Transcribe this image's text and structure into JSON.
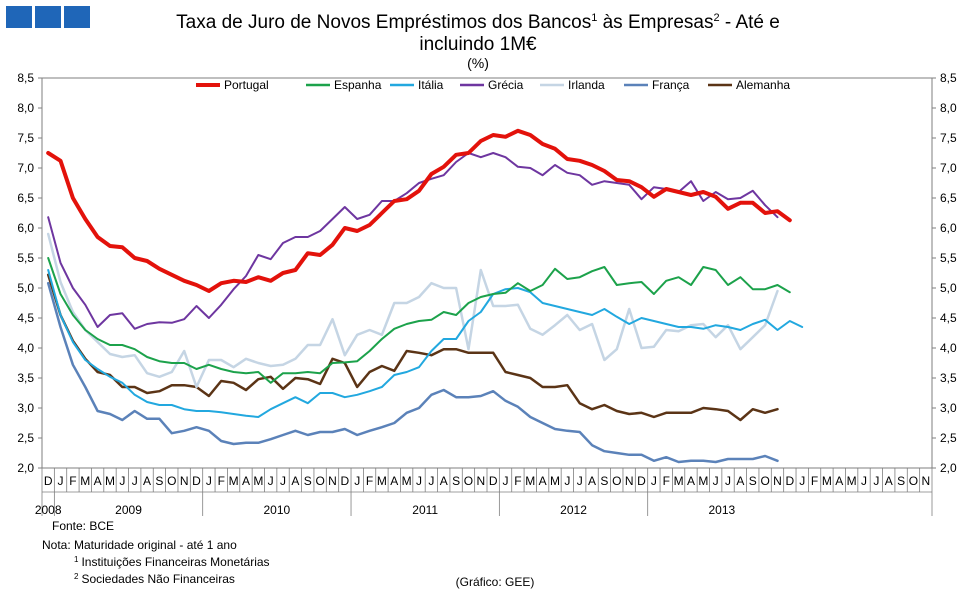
{
  "chart_data": {
    "type": "line",
    "title_main": "Taxa de Juro de Novos Empréstimos dos Bancos",
    "title_sup1": "1",
    "title_mid": " às Empresas",
    "title_sup2": "2",
    "title_end": " - Até e",
    "title_line2": "incluindo 1M€",
    "subtitle": "(%)",
    "ylim": [
      2.0,
      8.5
    ],
    "yticks": [
      "2,0",
      "2,5",
      "3,0",
      "3,5",
      "4,0",
      "4,5",
      "5,0",
      "5,5",
      "6,0",
      "6,5",
      "7,0",
      "7,5",
      "8,0",
      "8,5"
    ],
    "ytick_values": [
      2.0,
      2.5,
      3.0,
      3.5,
      4.0,
      4.5,
      5.0,
      5.5,
      6.0,
      6.5,
      7.0,
      7.5,
      8.0,
      8.5
    ],
    "month_labels": [
      "D",
      "J",
      "F",
      "M",
      "A",
      "M",
      "J",
      "J",
      "A",
      "S",
      "O",
      "N",
      "D",
      "J",
      "F",
      "M",
      "A",
      "M",
      "J",
      "J",
      "A",
      "S",
      "O",
      "N",
      "D",
      "J",
      "F",
      "M",
      "A",
      "M",
      "J",
      "J",
      "A",
      "S",
      "O",
      "N",
      "D",
      "J",
      "F",
      "M",
      "A",
      "M",
      "J",
      "J",
      "A",
      "S",
      "O",
      "N",
      "D",
      "J",
      "F",
      "M",
      "A",
      "M",
      "J",
      "J",
      "A",
      "S",
      "O",
      "N",
      "D",
      "J",
      "F",
      "M",
      "A",
      "M",
      "J",
      "J",
      "A",
      "S",
      "O",
      "N"
    ],
    "year_labels": [
      "2008",
      "2009",
      "2010",
      "2011",
      "2012",
      "2013"
    ],
    "series": [
      {
        "name": "Portugal",
        "color": "#e3120b",
        "width": 4,
        "values": [
          7.25,
          7.12,
          6.5,
          6.15,
          5.85,
          5.7,
          5.68,
          5.5,
          5.45,
          5.32,
          5.22,
          5.12,
          5.05,
          4.95,
          5.08,
          5.12,
          5.1,
          5.18,
          5.12,
          5.25,
          5.3,
          5.58,
          5.55,
          5.72,
          6.0,
          5.95,
          6.05,
          6.25,
          6.45,
          6.48,
          6.62,
          6.9,
          7.02,
          7.22,
          7.25,
          7.45,
          7.55,
          7.52,
          7.62,
          7.55,
          7.4,
          7.32,
          7.15,
          7.12,
          7.05,
          6.95,
          6.8,
          6.78,
          6.68,
          6.52,
          6.65,
          6.6,
          6.55,
          6.6,
          6.52,
          6.32,
          6.42,
          6.42,
          6.25,
          6.28,
          6.13
        ]
      },
      {
        "name": "Espanha",
        "color": "#1ca24b",
        "width": 2,
        "values": [
          5.5,
          4.9,
          4.55,
          4.3,
          4.15,
          4.05,
          4.05,
          3.98,
          3.85,
          3.78,
          3.75,
          3.75,
          3.65,
          3.72,
          3.65,
          3.6,
          3.58,
          3.6,
          3.42,
          3.58,
          3.58,
          3.6,
          3.58,
          3.75,
          3.76,
          3.78,
          3.95,
          4.15,
          4.32,
          4.4,
          4.45,
          4.47,
          4.6,
          4.55,
          4.75,
          4.85,
          4.9,
          4.92,
          5.08,
          4.95,
          5.05,
          5.32,
          5.15,
          5.18,
          5.28,
          5.35,
          5.05,
          5.08,
          5.1,
          4.9,
          5.12,
          5.18,
          5.05,
          5.35,
          5.3,
          5.05,
          5.18,
          4.98,
          4.98,
          5.05,
          4.93
        ]
      },
      {
        "name": "Itália",
        "color": "#22a8df",
        "width": 2,
        "values": [
          5.3,
          4.55,
          4.1,
          3.8,
          3.65,
          3.52,
          3.42,
          3.22,
          3.1,
          3.05,
          3.05,
          2.98,
          2.95,
          2.95,
          2.93,
          2.9,
          2.87,
          2.85,
          2.98,
          3.08,
          3.18,
          3.08,
          3.25,
          3.25,
          3.18,
          3.22,
          3.28,
          3.35,
          3.55,
          3.6,
          3.68,
          3.95,
          4.15,
          4.15,
          4.45,
          4.6,
          4.9,
          4.98,
          5.0,
          4.93,
          4.75,
          4.7,
          4.65,
          4.6,
          4.55,
          4.65,
          4.52,
          4.4,
          4.5,
          4.45,
          4.4,
          4.35,
          4.35,
          4.32,
          4.38,
          4.35,
          4.3,
          4.4,
          4.47,
          4.3,
          4.45,
          4.35
        ]
      },
      {
        "name": "Grécia",
        "color": "#6e36a0",
        "width": 2,
        "values": [
          6.18,
          5.42,
          5.0,
          4.72,
          4.35,
          4.55,
          4.58,
          4.32,
          4.4,
          4.43,
          4.42,
          4.48,
          4.7,
          4.5,
          4.72,
          4.98,
          5.2,
          5.55,
          5.48,
          5.75,
          5.85,
          5.85,
          5.95,
          6.15,
          6.35,
          6.15,
          6.22,
          6.45,
          6.45,
          6.58,
          6.75,
          6.82,
          6.88,
          7.1,
          7.25,
          7.18,
          7.25,
          7.18,
          7.02,
          7.0,
          6.88,
          7.05,
          6.92,
          6.88,
          6.72,
          6.78,
          6.75,
          6.72,
          6.48,
          6.68,
          6.65,
          6.6,
          6.78,
          6.45,
          6.6,
          6.48,
          6.5,
          6.62,
          6.38,
          6.18
        ]
      },
      {
        "name": "Irlanda",
        "color": "#c5d5e4",
        "width": 2.5,
        "values": [
          5.9,
          5.1,
          4.6,
          4.3,
          4.1,
          3.9,
          3.85,
          3.88,
          3.58,
          3.52,
          3.6,
          3.95,
          3.35,
          3.8,
          3.8,
          3.68,
          3.82,
          3.75,
          3.7,
          3.72,
          3.82,
          4.05,
          4.05,
          4.48,
          3.88,
          4.22,
          4.3,
          4.22,
          4.75,
          4.75,
          4.85,
          5.08,
          5.0,
          5.0,
          3.98,
          5.3,
          4.7,
          4.7,
          4.72,
          4.32,
          4.22,
          4.38,
          4.55,
          4.3,
          4.4,
          3.8,
          3.98,
          4.65,
          4.0,
          4.02,
          4.3,
          4.28,
          4.38,
          4.4,
          4.18,
          4.38,
          3.98,
          4.18,
          4.38,
          4.95
        ]
      },
      {
        "name": "França",
        "color": "#5b82b9",
        "width": 2.5,
        "values": [
          5.08,
          4.35,
          3.72,
          3.35,
          2.95,
          2.9,
          2.8,
          2.95,
          2.82,
          2.82,
          2.58,
          2.62,
          2.68,
          2.62,
          2.45,
          2.4,
          2.42,
          2.42,
          2.48,
          2.55,
          2.62,
          2.55,
          2.6,
          2.6,
          2.65,
          2.55,
          2.62,
          2.68,
          2.75,
          2.92,
          3.0,
          3.22,
          3.3,
          3.18,
          3.18,
          3.2,
          3.28,
          3.12,
          3.02,
          2.85,
          2.75,
          2.65,
          2.62,
          2.6,
          2.38,
          2.28,
          2.25,
          2.22,
          2.22,
          2.12,
          2.18,
          2.1,
          2.12,
          2.12,
          2.1,
          2.15,
          2.15,
          2.15,
          2.2,
          2.12
        ]
      },
      {
        "name": "Alemanha",
        "color": "#5b3416",
        "width": 2.5,
        "values": [
          5.22,
          4.55,
          4.12,
          3.82,
          3.6,
          3.55,
          3.35,
          3.35,
          3.25,
          3.28,
          3.38,
          3.38,
          3.35,
          3.2,
          3.45,
          3.42,
          3.3,
          3.48,
          3.52,
          3.32,
          3.5,
          3.48,
          3.4,
          3.82,
          3.75,
          3.35,
          3.6,
          3.7,
          3.62,
          3.95,
          3.92,
          3.88,
          3.98,
          3.98,
          3.92,
          3.92,
          3.92,
          3.6,
          3.55,
          3.5,
          3.35,
          3.35,
          3.38,
          3.08,
          2.98,
          3.05,
          2.95,
          2.9,
          2.92,
          2.85,
          2.92,
          2.92,
          2.92,
          3.0,
          2.98,
          2.95,
          2.8,
          2.98,
          2.92,
          2.98
        ]
      }
    ]
  },
  "footer": {
    "source": "Fonte: BCE",
    "note": "Nota: Maturidade original - até 1 ano",
    "fn1_sup": "1",
    "fn1_text": "Instituições Financeiras Monetárias",
    "fn2_sup": "2",
    "fn2_text": "Sociedades Não Financeiras",
    "credit": "(Gráfico:  GEE)"
  },
  "logo": {
    "color": "#1f66b8"
  }
}
